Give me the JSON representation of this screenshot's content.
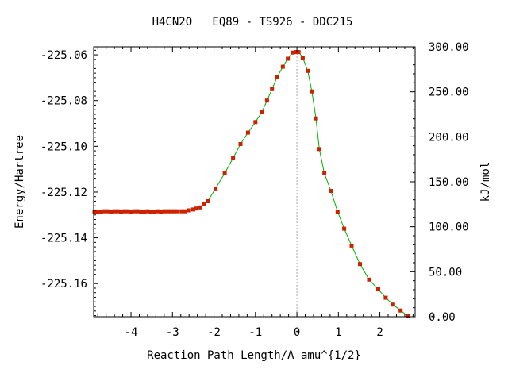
{
  "chart_data": {
    "type": "line",
    "title": "H4CN2O   EQ89 - TS926 - DDC215",
    "xlabel": "Reaction Path Length/A amu^{1/2}",
    "ylabel": "Energy/Hartree",
    "y2label": "kJ/mol",
    "xlim": [
      -4.9,
      2.85
    ],
    "ylim": [
      -225.1745,
      -225.0565
    ],
    "y2lim": [
      0.0,
      300.0
    ],
    "grid": false,
    "legend": "none",
    "x_ticks": [
      {
        "v": -4,
        "label": "-4"
      },
      {
        "v": -3,
        "label": "-3"
      },
      {
        "v": -2,
        "label": "-2"
      },
      {
        "v": -1,
        "label": "-1"
      },
      {
        "v": 0,
        "label": "0"
      },
      {
        "v": 1,
        "label": "1"
      },
      {
        "v": 2,
        "label": "2"
      }
    ],
    "y_ticks": [
      {
        "v": -225.06,
        "label": "-225.06"
      },
      {
        "v": -225.08,
        "label": "-225.08"
      },
      {
        "v": -225.1,
        "label": "-225.10"
      },
      {
        "v": -225.12,
        "label": "-225.12"
      },
      {
        "v": -225.14,
        "label": "-225.14"
      },
      {
        "v": -225.16,
        "label": "-225.16"
      }
    ],
    "y2_ticks": [
      {
        "v": 300,
        "label": "300.00"
      },
      {
        "v": 250,
        "label": "250.00"
      },
      {
        "v": 200,
        "label": "200.00"
      },
      {
        "v": 150,
        "label": "150.00"
      },
      {
        "v": 100,
        "label": "100.00"
      },
      {
        "v": 50,
        "label": "50.00"
      },
      {
        "v": 0,
        "label": "0.00"
      }
    ],
    "ts_x": 0.0,
    "series": [
      {
        "line_color": "#00b000",
        "marker_color": "#cc2200",
        "points": [
          [
            -4.88,
            -225.1285
          ],
          [
            -4.8,
            -225.1285
          ],
          [
            -4.72,
            -225.1285
          ],
          [
            -4.64,
            -225.1284
          ],
          [
            -4.56,
            -225.1284
          ],
          [
            -4.48,
            -225.1285
          ],
          [
            -4.4,
            -225.1284
          ],
          [
            -4.32,
            -225.1284
          ],
          [
            -4.24,
            -225.1285
          ],
          [
            -4.16,
            -225.1284
          ],
          [
            -4.08,
            -225.1284
          ],
          [
            -4.0,
            -225.1285
          ],
          [
            -3.92,
            -225.1284
          ],
          [
            -3.84,
            -225.1284
          ],
          [
            -3.76,
            -225.1285
          ],
          [
            -3.68,
            -225.1285
          ],
          [
            -3.6,
            -225.1284
          ],
          [
            -3.52,
            -225.1285
          ],
          [
            -3.44,
            -225.1285
          ],
          [
            -3.36,
            -225.1284
          ],
          [
            -3.28,
            -225.1285
          ],
          [
            -3.2,
            -225.1284
          ],
          [
            -3.12,
            -225.1284
          ],
          [
            -3.04,
            -225.1284
          ],
          [
            -2.96,
            -225.1284
          ],
          [
            -2.88,
            -225.1284
          ],
          [
            -2.78,
            -225.1284
          ],
          [
            -2.7,
            -225.1284
          ],
          [
            -2.6,
            -225.128
          ],
          [
            -2.5,
            -225.1276
          ],
          [
            -2.42,
            -225.1272
          ],
          [
            -2.34,
            -225.1267
          ],
          [
            -2.24,
            -225.1254
          ],
          [
            -2.15,
            -225.124
          ],
          [
            -1.96,
            -225.1184
          ],
          [
            -1.74,
            -225.1118
          ],
          [
            -1.54,
            -225.1052
          ],
          [
            -1.36,
            -225.099
          ],
          [
            -1.18,
            -225.094
          ],
          [
            -1.0,
            -225.0894
          ],
          [
            -0.84,
            -225.0848
          ],
          [
            -0.72,
            -225.08
          ],
          [
            -0.6,
            -225.075
          ],
          [
            -0.48,
            -225.0698
          ],
          [
            -0.34,
            -225.0652
          ],
          [
            -0.22,
            -225.0617
          ],
          [
            -0.1,
            -225.059
          ],
          [
            -0.02,
            -225.0588
          ],
          [
            0.04,
            -225.0588
          ],
          [
            0.14,
            -225.0612
          ],
          [
            0.26,
            -225.067
          ],
          [
            0.36,
            -225.076
          ],
          [
            0.46,
            -225.0878
          ],
          [
            0.54,
            -225.1012
          ],
          [
            0.66,
            -225.1118
          ],
          [
            0.82,
            -225.1195
          ],
          [
            0.98,
            -225.1285
          ],
          [
            1.14,
            -225.136
          ],
          [
            1.32,
            -225.1434
          ],
          [
            1.52,
            -225.1515
          ],
          [
            1.74,
            -225.1583
          ],
          [
            1.96,
            -225.1625
          ],
          [
            2.14,
            -225.1662
          ],
          [
            2.32,
            -225.1692
          ],
          [
            2.5,
            -225.1718
          ],
          [
            2.68,
            -225.1743
          ]
        ]
      }
    ]
  }
}
